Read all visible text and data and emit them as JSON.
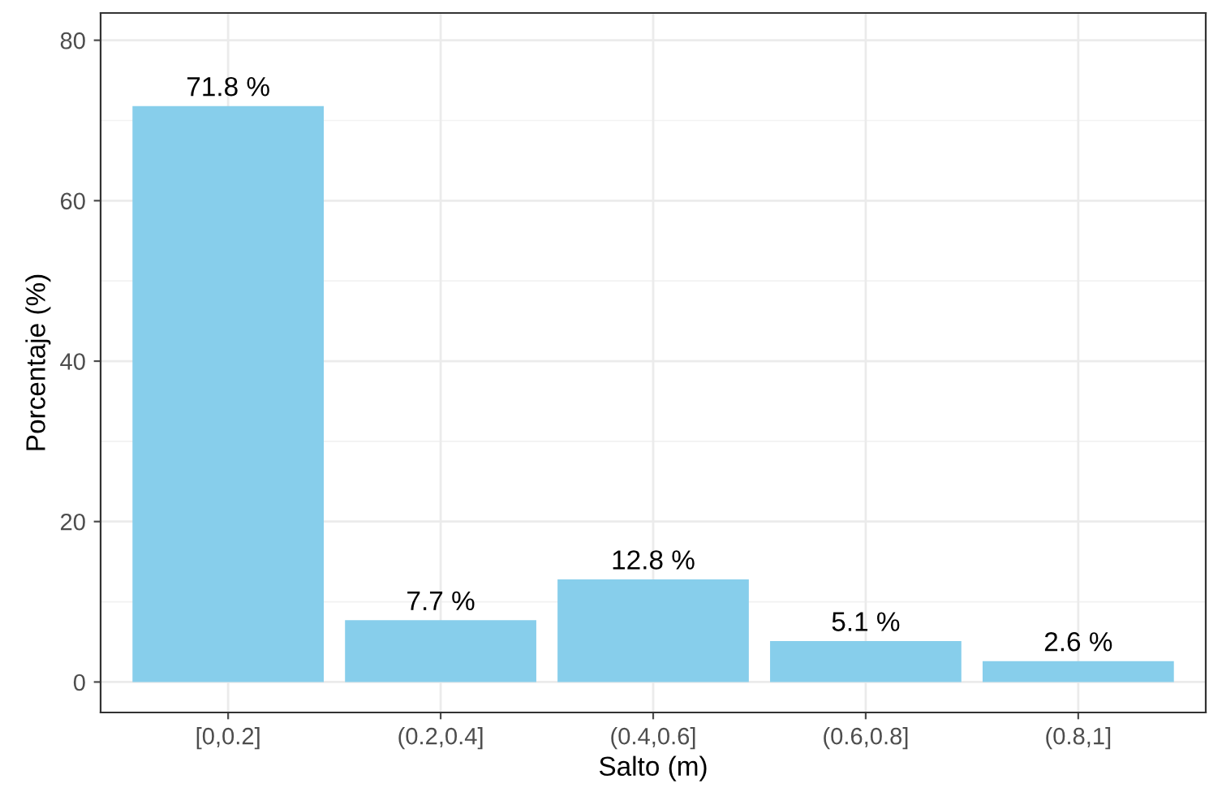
{
  "chart_data": {
    "type": "bar",
    "xlabel": "Salto (m)",
    "ylabel": "Porcentaje (%)",
    "categories": [
      "[0,0.2]",
      "(0.2,0.4]",
      "(0.4,0.6]",
      "(0.6,0.8]",
      "(0.8,1]"
    ],
    "values": [
      71.8,
      7.7,
      12.8,
      5.1,
      2.6
    ],
    "value_labels": [
      "71.8 %",
      "7.7 %",
      "12.8 %",
      "5.1 %",
      "2.6 %"
    ],
    "color": "#87ceeb",
    "ylim": [
      -3.8,
      83.4
    ],
    "yticks": [
      0,
      20,
      40,
      60,
      80
    ],
    "grid": true
  }
}
